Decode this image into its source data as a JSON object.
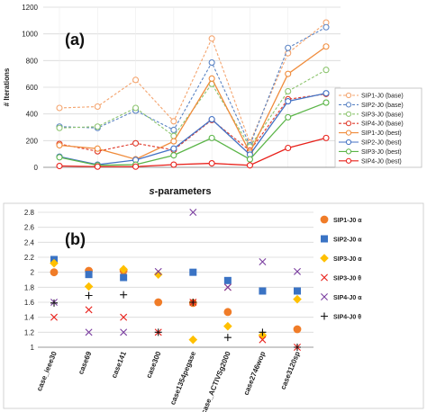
{
  "chart_data": [
    {
      "type": "line",
      "panel_label": "(a)",
      "ylabel": "# Iterations",
      "xlabel": "s-parameters",
      "ylim": [
        0,
        1200
      ],
      "yticks": [
        0,
        200,
        400,
        600,
        800,
        1000,
        1200
      ],
      "x_count": 8,
      "grid": true,
      "legend_position": "right",
      "series": [
        {
          "name": "SIP1-J0 (base)",
          "color": "#F4A46E",
          "dashed": true,
          "values": [
            445,
            455,
            655,
            345,
            965,
            185,
            855,
            1085
          ]
        },
        {
          "name": "SIP2-J0 (base)",
          "color": "#5B84C4",
          "dashed": true,
          "values": [
            305,
            295,
            425,
            280,
            785,
            165,
            895,
            1050
          ]
        },
        {
          "name": "SIP3-J0 (base)",
          "color": "#8CC46E",
          "dashed": true,
          "values": [
            295,
            305,
            445,
            235,
            625,
            155,
            570,
            730
          ]
        },
        {
          "name": "SIP4-J0 (base)",
          "color": "#E03A2A",
          "dashed": true,
          "values": [
            175,
            120,
            180,
            130,
            355,
            125,
            510,
            550
          ]
        },
        {
          "name": "SIP1-J0 (best)",
          "color": "#F08C3C",
          "dashed": false,
          "values": [
            165,
            140,
            60,
            195,
            665,
            110,
            700,
            905
          ]
        },
        {
          "name": "SIP2-J0 (best)",
          "color": "#4472C4",
          "dashed": false,
          "values": [
            80,
            20,
            55,
            140,
            360,
            95,
            495,
            555
          ]
        },
        {
          "name": "SIP3-J0 (best)",
          "color": "#5BB548",
          "dashed": false,
          "values": [
            75,
            15,
            20,
            90,
            220,
            60,
            375,
            485
          ]
        },
        {
          "name": "SIP4-J0 (best)",
          "color": "#E8201A",
          "dashed": false,
          "values": [
            10,
            5,
            5,
            20,
            30,
            15,
            145,
            220
          ]
        }
      ]
    },
    {
      "type": "scatter",
      "panel_label": "(b)",
      "categories": [
        "case_ieee30",
        "case69",
        "case141",
        "case300",
        "case1354pegase",
        "case_ACTIVSg2000",
        "case2746wop",
        "case3120sp"
      ],
      "ylim": [
        1,
        2.8
      ],
      "yticks": [
        "1",
        "1.2",
        "1.4",
        "1.6",
        "1.8",
        "2",
        "2.2",
        "2.4",
        "2.6",
        "2.8"
      ],
      "grid": true,
      "legend_position": "right",
      "series": [
        {
          "name": "SIP1-J0 α",
          "color": "#F07C28",
          "marker": "circle",
          "values": [
            2.0,
            2.02,
            2.02,
            1.6,
            1.59,
            1.47,
            null,
            1.24
          ]
        },
        {
          "name": "SIP2-J0 α",
          "color": "#3A73C4",
          "marker": "square",
          "values": [
            2.17,
            1.97,
            1.93,
            null,
            2.0,
            1.89,
            1.75,
            1.75
          ]
        },
        {
          "name": "SIP3-J0 α",
          "color": "#FFC000",
          "marker": "diamond",
          "values": [
            2.12,
            1.81,
            2.04,
            1.97,
            1.1,
            1.28,
            1.16,
            1.64
          ]
        },
        {
          "name": "SIP3-J0 θ",
          "color": "#E8201A",
          "marker": "x",
          "values": [
            1.4,
            1.5,
            1.4,
            1.2,
            1.6,
            1.8,
            1.1,
            1.0
          ]
        },
        {
          "name": "SIP4-J0 α",
          "color": "#7B3FA0",
          "marker": "x",
          "values": [
            1.6,
            1.2,
            1.2,
            2.01,
            2.8,
            1.8,
            2.14,
            2.01
          ]
        },
        {
          "name": "SIP4-J0 θ",
          "color": "#111111",
          "marker": "plus",
          "values": [
            1.59,
            1.69,
            1.7,
            1.2,
            1.6,
            1.13,
            1.2,
            1.0
          ]
        }
      ]
    }
  ]
}
